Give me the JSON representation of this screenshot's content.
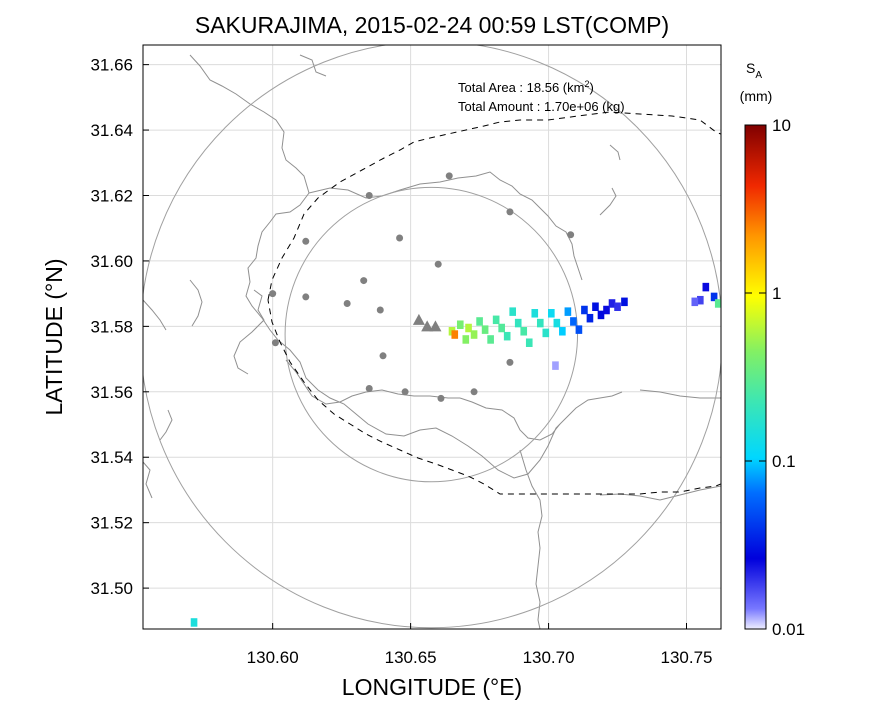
{
  "chart_data": {
    "type": "heatmap",
    "title": "SAKURAJIMA, 2015-02-24 00:59 LST(COMP)",
    "xlabel": "LONGITUDE (°E)",
    "ylabel": "LATITUDE (°N)",
    "xlim": [
      130.553,
      130.7625
    ],
    "ylim": [
      31.4875,
      31.666
    ],
    "x_ticks": [
      "130.60",
      "130.65",
      "130.70",
      "130.75"
    ],
    "x_tick_values": [
      130.6,
      130.65,
      130.7,
      130.75
    ],
    "y_ticks": [
      "31.50",
      "31.52",
      "31.54",
      "31.56",
      "31.58",
      "31.60",
      "31.62",
      "31.64",
      "31.66"
    ],
    "y_tick_values": [
      31.5,
      31.52,
      31.54,
      31.56,
      31.58,
      31.6,
      31.62,
      31.64,
      31.66
    ],
    "grid": true,
    "annotations": {
      "area_label": "Total Area   : 18.56 (km",
      "area_exp": "2",
      "area_close": ")",
      "amount_label": "Total Amount : 1.70e+06 (kg)"
    },
    "colorbar": {
      "title_main": "S",
      "title_sub": "A",
      "unit": "(mm)",
      "scale": "log",
      "range": [
        0.01,
        10
      ],
      "tick_labels": [
        "10",
        "1",
        "0.1",
        "0.01"
      ],
      "tick_values": [
        10,
        1,
        0.1,
        0.01
      ]
    },
    "range_rings": [
      {
        "center": [
          130.6575,
          31.5775
        ],
        "radius_deg_lon": 0.1055,
        "radius_deg_lat": 0.0896
      },
      {
        "center": [
          130.6575,
          31.5775
        ],
        "radius_deg_lon": 0.053,
        "radius_deg_lat": 0.045
      }
    ],
    "vents": [
      [
        130.653,
        31.582
      ],
      [
        130.656,
        31.58
      ],
      [
        130.659,
        31.58
      ]
    ],
    "stations": [
      [
        130.664,
        31.626
      ],
      [
        130.635,
        31.62
      ],
      [
        130.686,
        31.615
      ],
      [
        130.708,
        31.608
      ],
      [
        130.612,
        31.606
      ],
      [
        130.646,
        31.607
      ],
      [
        130.66,
        31.599
      ],
      [
        130.6,
        31.59
      ],
      [
        130.612,
        31.589
      ],
      [
        130.633,
        31.594
      ],
      [
        130.627,
        31.587
      ],
      [
        130.639,
        31.585
      ],
      [
        130.601,
        31.575
      ],
      [
        130.64,
        31.571
      ],
      [
        130.686,
        31.569
      ],
      [
        130.635,
        31.561
      ],
      [
        130.648,
        31.56
      ],
      [
        130.673,
        31.56
      ],
      [
        130.661,
        31.558
      ]
    ],
    "ash_cells": [
      {
        "lon": 130.665,
        "lat": 31.5785,
        "sa": 0.6
      },
      {
        "lon": 130.666,
        "lat": 31.5775,
        "sa": 2.5
      },
      {
        "lon": 130.668,
        "lat": 31.5805,
        "sa": 0.4
      },
      {
        "lon": 130.671,
        "lat": 31.5795,
        "sa": 0.6
      },
      {
        "lon": 130.673,
        "lat": 31.5775,
        "sa": 0.5
      },
      {
        "lon": 130.67,
        "lat": 31.576,
        "sa": 0.45
      },
      {
        "lon": 130.675,
        "lat": 31.5815,
        "sa": 0.3
      },
      {
        "lon": 130.677,
        "lat": 31.579,
        "sa": 0.35
      },
      {
        "lon": 130.679,
        "lat": 31.576,
        "sa": 0.3
      },
      {
        "lon": 130.681,
        "lat": 31.582,
        "sa": 0.25
      },
      {
        "lon": 130.683,
        "lat": 31.5795,
        "sa": 0.28
      },
      {
        "lon": 130.685,
        "lat": 31.577,
        "sa": 0.22
      },
      {
        "lon": 130.687,
        "lat": 31.5845,
        "sa": 0.18
      },
      {
        "lon": 130.689,
        "lat": 31.581,
        "sa": 0.2
      },
      {
        "lon": 130.691,
        "lat": 31.5785,
        "sa": 0.25
      },
      {
        "lon": 130.693,
        "lat": 31.575,
        "sa": 0.22
      },
      {
        "lon": 130.695,
        "lat": 31.584,
        "sa": 0.15
      },
      {
        "lon": 130.697,
        "lat": 31.581,
        "sa": 0.2
      },
      {
        "lon": 130.699,
        "lat": 31.578,
        "sa": 0.18
      },
      {
        "lon": 130.701,
        "lat": 31.584,
        "sa": 0.12
      },
      {
        "lon": 130.703,
        "lat": 31.581,
        "sa": 0.14
      },
      {
        "lon": 130.705,
        "lat": 31.5785,
        "sa": 0.1
      },
      {
        "lon": 130.707,
        "lat": 31.5845,
        "sa": 0.08
      },
      {
        "lon": 130.709,
        "lat": 31.5815,
        "sa": 0.06
      },
      {
        "lon": 130.711,
        "lat": 31.579,
        "sa": 0.05
      },
      {
        "lon": 130.713,
        "lat": 31.585,
        "sa": 0.04
      },
      {
        "lon": 130.715,
        "lat": 31.5825,
        "sa": 0.035
      },
      {
        "lon": 130.717,
        "lat": 31.586,
        "sa": 0.03
      },
      {
        "lon": 130.719,
        "lat": 31.5835,
        "sa": 0.028
      },
      {
        "lon": 130.721,
        "lat": 31.585,
        "sa": 0.025
      },
      {
        "lon": 130.723,
        "lat": 31.587,
        "sa": 0.022
      },
      {
        "lon": 130.725,
        "lat": 31.586,
        "sa": 0.02
      },
      {
        "lon": 130.7275,
        "lat": 31.5875,
        "sa": 0.03
      },
      {
        "lon": 130.7025,
        "lat": 31.568,
        "sa": 0.012
      },
      {
        "lon": 130.757,
        "lat": 31.592,
        "sa": 0.025
      },
      {
        "lon": 130.76,
        "lat": 31.589,
        "sa": 0.04
      },
      {
        "lon": 130.7615,
        "lat": 31.587,
        "sa": 0.3
      },
      {
        "lon": 130.755,
        "lat": 31.588,
        "sa": 0.018
      },
      {
        "lon": 130.753,
        "lat": 31.5875,
        "sa": 0.015
      },
      {
        "lon": 130.5715,
        "lat": 31.4895,
        "sa": 0.15
      }
    ],
    "colors": {
      "grid": "#dcdcdc",
      "ring": "#a0a0a0",
      "coast": "#909090",
      "station": "#808080",
      "vent": "#808080",
      "axis": "#000000"
    }
  }
}
